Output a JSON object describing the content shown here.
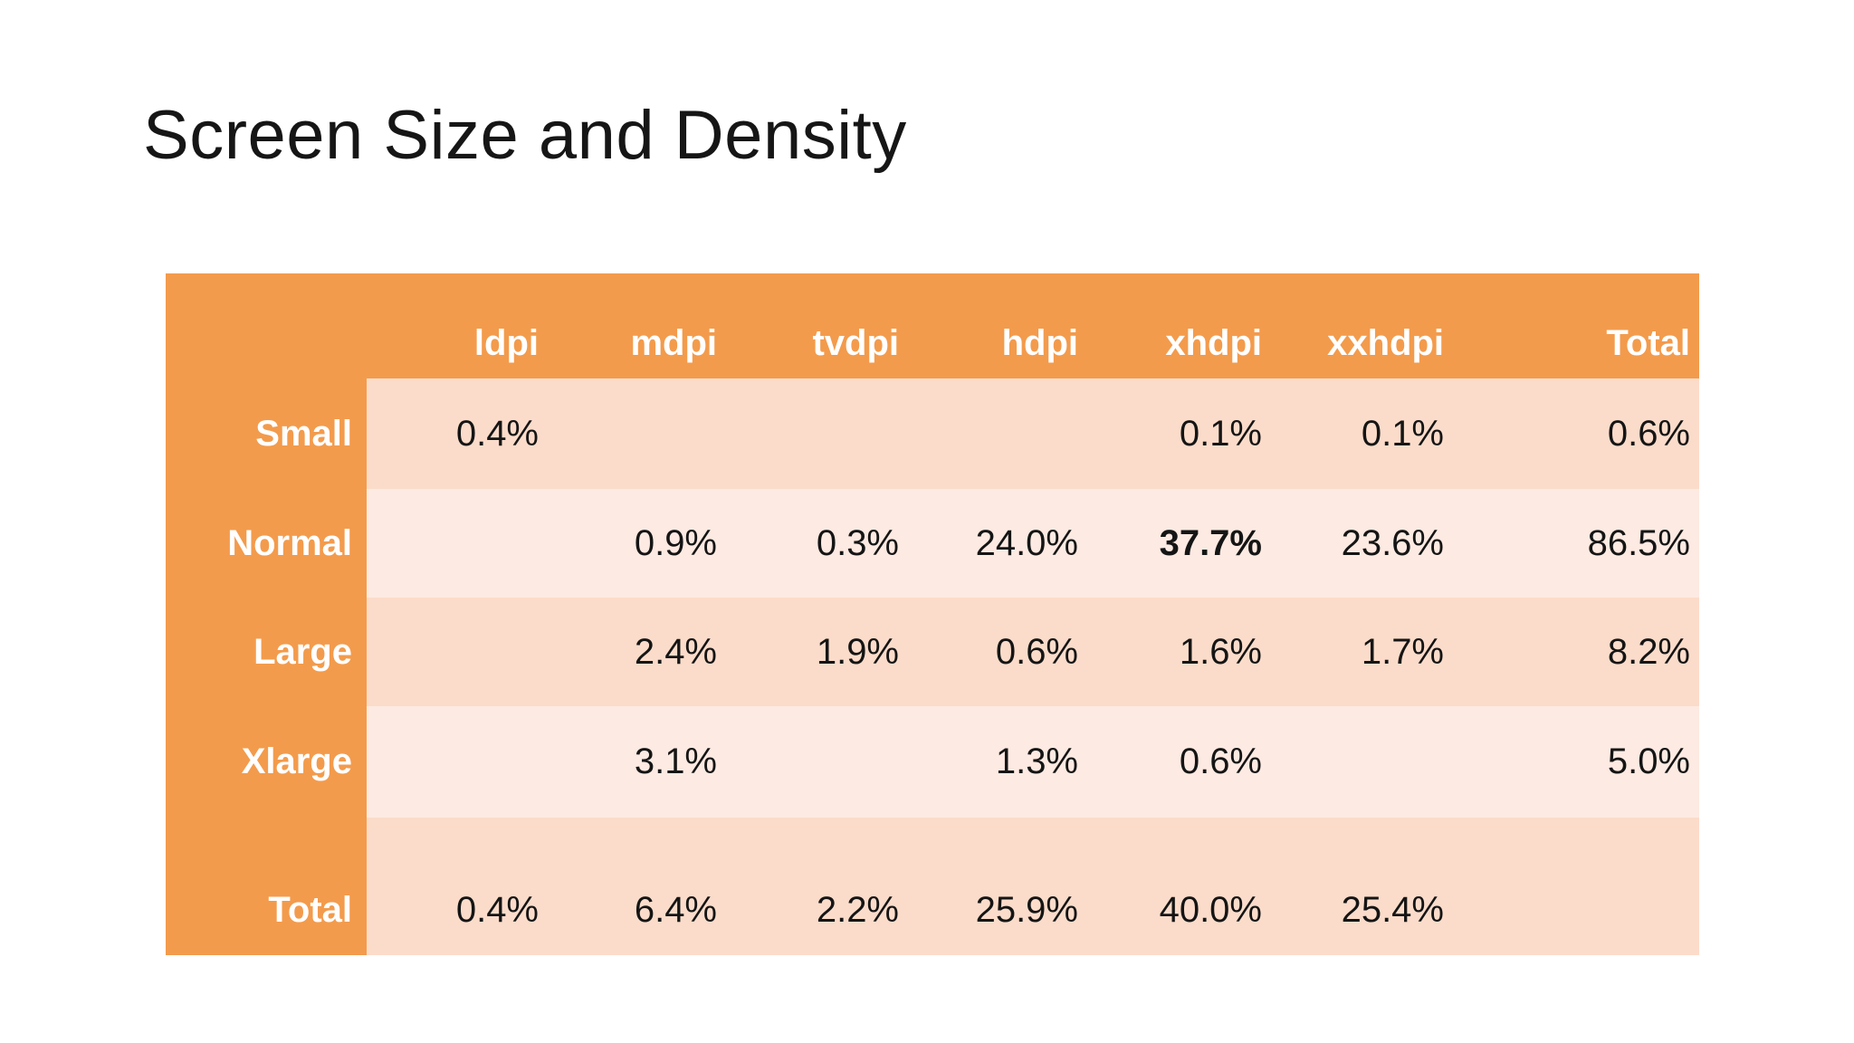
{
  "slide": {
    "title": "Screen Size and Density"
  },
  "colors": {
    "accent_orange": "#F39B4C",
    "row_band_dark": "#FBDCCA",
    "row_band_light": "#FDEAE2",
    "header_text": "#FFFFFF",
    "value_text": "#151515",
    "background": "#FFFFFF"
  },
  "table": {
    "column_headers": [
      "ldpi",
      "mdpi",
      "tvdpi",
      "hdpi",
      "xhdpi",
      "xxhdpi",
      "Total"
    ],
    "rows": [
      {
        "label": "Small",
        "values": [
          "0.4%",
          "",
          "",
          "",
          "0.1%",
          "0.1%",
          "0.6%"
        ]
      },
      {
        "label": "Normal",
        "values": [
          "",
          "0.9%",
          "0.3%",
          "24.0%",
          "37.7%",
          "23.6%",
          "86.5%"
        ]
      },
      {
        "label": "Large",
        "values": [
          "",
          "2.4%",
          "1.9%",
          "0.6%",
          "1.6%",
          "1.7%",
          "8.2%"
        ]
      },
      {
        "label": "Xlarge",
        "values": [
          "",
          "3.1%",
          "",
          "1.3%",
          "0.6%",
          "",
          "5.0%"
        ]
      },
      {
        "label": "Total",
        "values": [
          "0.4%",
          "6.4%",
          "2.2%",
          "25.9%",
          "40.0%",
          "25.4%",
          ""
        ]
      }
    ],
    "emphasized_cell": {
      "row": "Normal",
      "column": "xhdpi",
      "value": "37.7%"
    }
  },
  "chart_data": {
    "type": "table",
    "title": "Screen Size and Density",
    "columns": [
      "ldpi",
      "mdpi",
      "tvdpi",
      "hdpi",
      "xhdpi",
      "xxhdpi",
      "Total"
    ],
    "row_labels": [
      "Small",
      "Normal",
      "Large",
      "Xlarge",
      "Total"
    ],
    "values_percent": [
      [
        0.4,
        null,
        null,
        null,
        0.1,
        0.1,
        0.6
      ],
      [
        null,
        0.9,
        0.3,
        24.0,
        37.7,
        23.6,
        86.5
      ],
      [
        null,
        2.4,
        1.9,
        0.6,
        1.6,
        1.7,
        8.2
      ],
      [
        null,
        3.1,
        null,
        1.3,
        0.6,
        null,
        5.0
      ],
      [
        0.4,
        6.4,
        2.2,
        25.9,
        40.0,
        25.4,
        null
      ]
    ]
  }
}
